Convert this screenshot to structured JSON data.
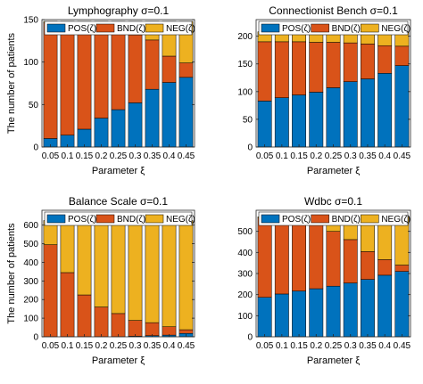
{
  "colors": {
    "POS": "#0072BD",
    "BND": "#D95319",
    "NEG": "#EDB120"
  },
  "chart_data": [
    {
      "type": "bar",
      "stacked": true,
      "title": "Lymphography σ=0.1",
      "xlabel": "Parameter ξ",
      "ylabel": "The number of patients",
      "categories": [
        "0.05",
        "0.1",
        "0.15",
        "0.2",
        "0.25",
        "0.3",
        "0.35",
        "0.4",
        "0.45"
      ],
      "ylim": [
        0,
        150
      ],
      "yticks": [
        0,
        50,
        100,
        150
      ],
      "legend": [
        "POS(ζ)",
        "BND(ζ)",
        "NEG(ζ)"
      ],
      "legend_placement": "top",
      "series": [
        {
          "key": "POS",
          "name": "POS(ζ)",
          "values": [
            10,
            14,
            21,
            34,
            44,
            52,
            68,
            76,
            82
          ]
        },
        {
          "key": "BND",
          "name": "BND(ζ)",
          "values": [
            136,
            133,
            125,
            111,
            98,
            80,
            58,
            31,
            17
          ]
        },
        {
          "key": "NEG",
          "name": "NEG(ζ)",
          "values": [
            2,
            1,
            2,
            3,
            6,
            16,
            22,
            41,
            49
          ]
        }
      ]
    },
    {
      "type": "bar",
      "stacked": true,
      "title": "Connectionist Bench σ=0.1",
      "xlabel": "Parameter ξ",
      "ylabel": "",
      "categories": [
        "0.05",
        "0.1",
        "0.15",
        "0.2",
        "0.25",
        "0.3",
        "0.35",
        "0.4",
        "0.45"
      ],
      "ylim": [
        0,
        230
      ],
      "yticks": [
        0,
        50,
        100,
        150,
        200
      ],
      "legend": [
        "POS(ζ)",
        "BND(ζ)",
        "NEG(ζ)"
      ],
      "legend_placement": "top",
      "series": [
        {
          "key": "POS",
          "name": "POS(ζ)",
          "values": [
            83,
            89,
            94,
            99,
            107,
            118,
            123,
            133,
            147
          ]
        },
        {
          "key": "BND",
          "name": "BND(ζ)",
          "values": [
            107,
            101,
            96,
            90,
            82,
            70,
            63,
            50,
            35
          ]
        },
        {
          "key": "NEG",
          "name": "NEG(ζ)",
          "values": [
            18,
            18,
            18,
            19,
            19,
            20,
            22,
            25,
            26
          ]
        }
      ]
    },
    {
      "type": "bar",
      "stacked": true,
      "title": "Balance Scale σ=0.1",
      "xlabel": "Parameter ξ",
      "ylabel": "The number of patients",
      "categories": [
        "0.05",
        "0.1",
        "0.15",
        "0.2",
        "0.25",
        "0.3",
        "0.35",
        "0.4",
        "0.45"
      ],
      "ylim": [
        0,
        680
      ],
      "yticks": [
        0,
        100,
        200,
        300,
        400,
        500,
        600
      ],
      "legend": [
        "POS(ζ)",
        "BND(ζ)",
        "NEG(ζ)"
      ],
      "legend_placement": "top",
      "series": [
        {
          "key": "POS",
          "name": "POS(ζ)",
          "values": [
            0,
            0,
            0,
            0,
            0,
            3,
            6,
            9,
            18
          ]
        },
        {
          "key": "BND",
          "name": "BND(ζ)",
          "values": [
            495,
            345,
            225,
            160,
            125,
            85,
            70,
            45,
            20
          ]
        },
        {
          "key": "NEG",
          "name": "NEG(ζ)",
          "values": [
            130,
            280,
            400,
            465,
            500,
            537,
            549,
            571,
            587
          ]
        }
      ]
    },
    {
      "type": "bar",
      "stacked": true,
      "title": "Wdbc σ=0.1",
      "xlabel": "Parameter ξ",
      "ylabel": "",
      "categories": [
        "0.05",
        "0.1",
        "0.15",
        "0.2",
        "0.25",
        "0.3",
        "0.35",
        "0.4",
        "0.45"
      ],
      "ylim": [
        0,
        600
      ],
      "yticks": [
        0,
        100,
        200,
        300,
        400,
        500
      ],
      "legend": [
        "POS(ζ)",
        "BND(ζ)",
        "NEG(ζ)"
      ],
      "legend_placement": "top",
      "series": [
        {
          "key": "POS",
          "name": "POS(ζ)",
          "values": [
            187,
            203,
            217,
            228,
            240,
            255,
            272,
            292,
            310
          ]
        },
        {
          "key": "BND",
          "name": "BND(ζ)",
          "values": [
            376,
            353,
            326,
            301,
            260,
            206,
            132,
            74,
            30
          ]
        },
        {
          "key": "NEG",
          "name": "NEG(ζ)",
          "values": [
            6,
            13,
            26,
            40,
            69,
            108,
            165,
            203,
            229
          ]
        }
      ]
    }
  ]
}
